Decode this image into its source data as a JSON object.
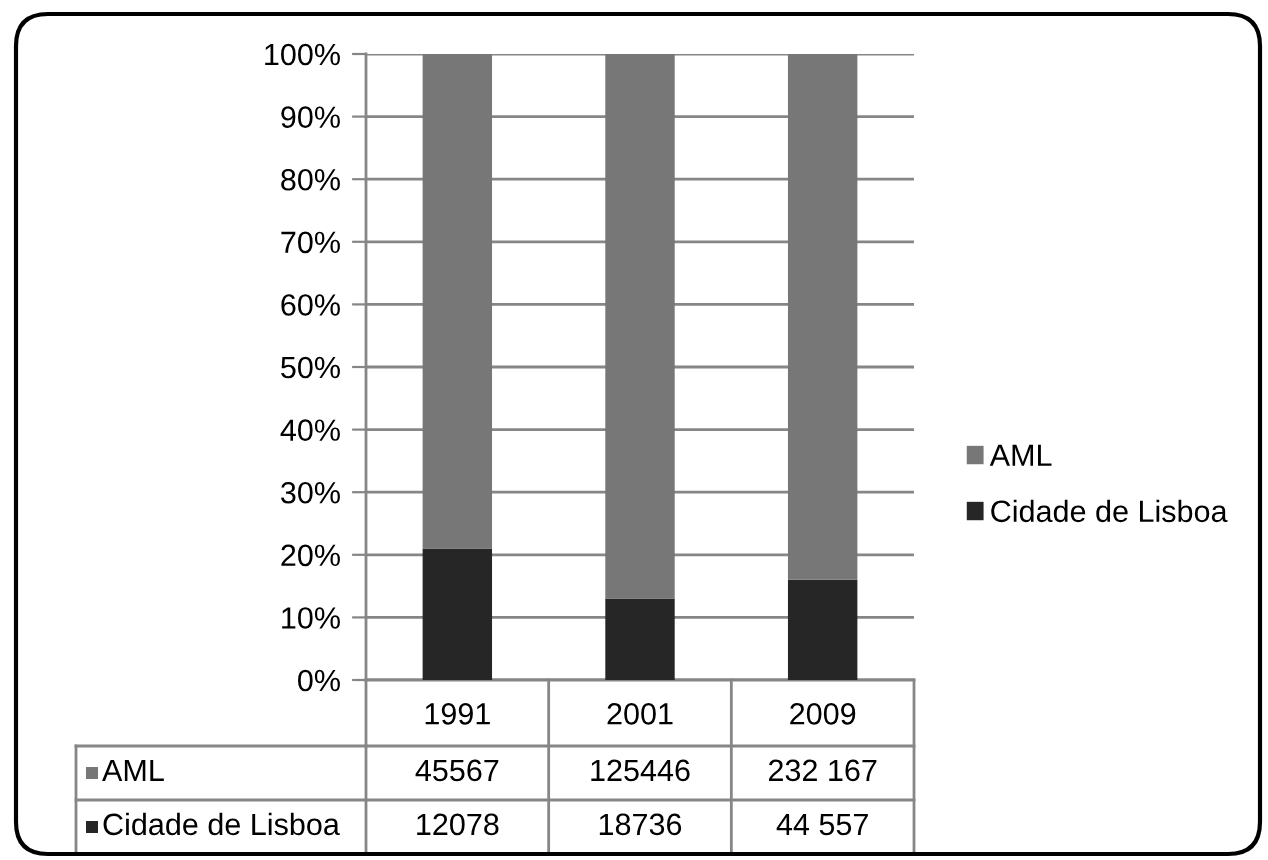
{
  "chart_data": {
    "type": "bar",
    "stacked": true,
    "categories": [
      "1991",
      "2001",
      "2009"
    ],
    "series": [
      {
        "name": "Cidade de Lisboa",
        "color": "#262626",
        "values": [
          21,
          13,
          16
        ]
      },
      {
        "name": "AML",
        "color": "#777777",
        "values": [
          79,
          87,
          84
        ]
      }
    ],
    "ylim": [
      0,
      100
    ],
    "yticks": [
      {
        "value": 0,
        "label": "0%"
      },
      {
        "value": 10,
        "label": "10%"
      },
      {
        "value": 20,
        "label": "20%"
      },
      {
        "value": 30,
        "label": "30%"
      },
      {
        "value": 40,
        "label": "40%"
      },
      {
        "value": 50,
        "label": "50%"
      },
      {
        "value": 60,
        "label": "60%"
      },
      {
        "value": 70,
        "label": "70%"
      },
      {
        "value": 80,
        "label": "80%"
      },
      {
        "value": 90,
        "label": "90%"
      },
      {
        "value": 100,
        "label": "100%"
      }
    ],
    "annotations": [
      "45567",
      "125446",
      "232 167",
      "12078",
      "18736",
      "44 557"
    ],
    "grid": "y",
    "legend": "right"
  }
}
